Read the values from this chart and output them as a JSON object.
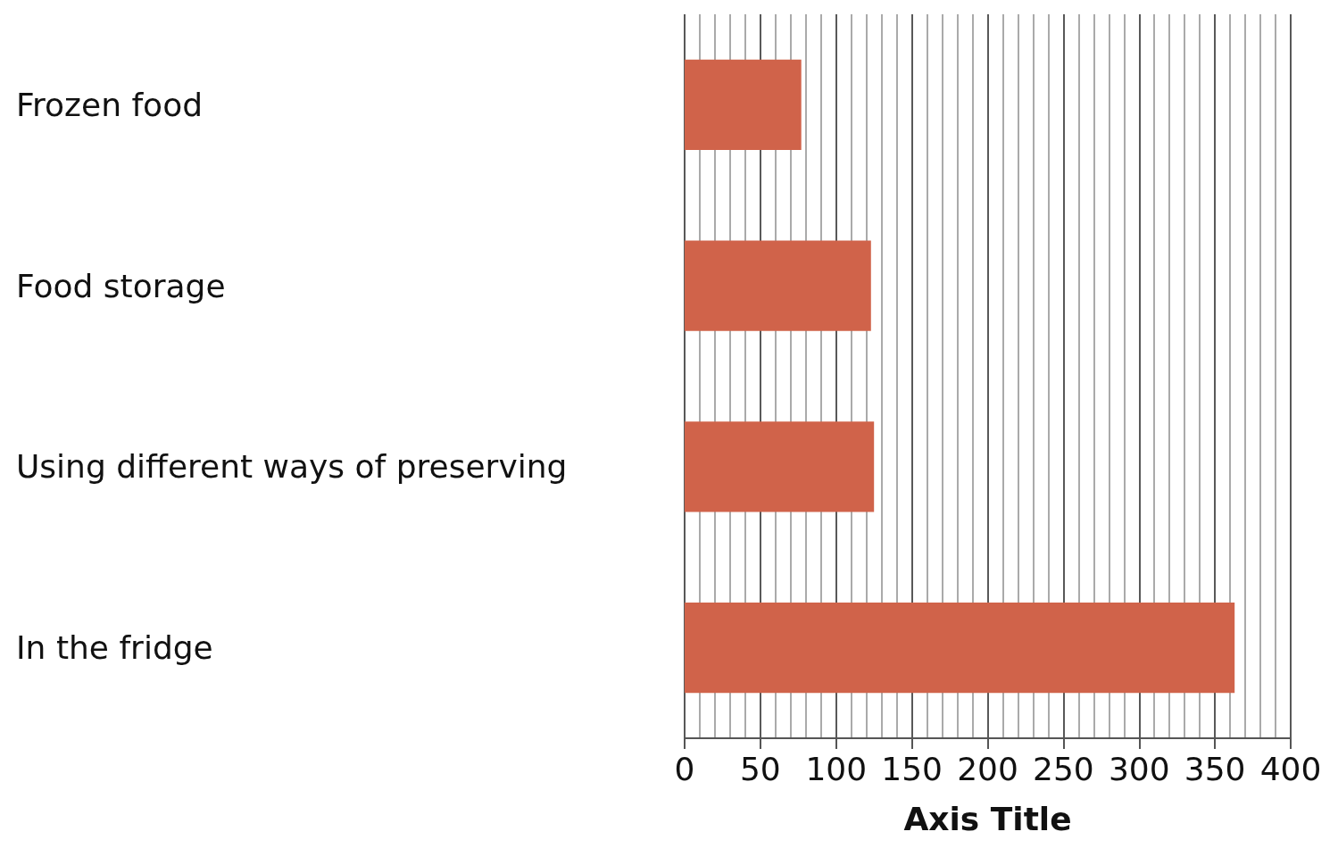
{
  "chart_data": {
    "type": "bar",
    "orientation": "horizontal",
    "xlabel": "Axis Title",
    "categories": [
      "Frozen food",
      "Food storage",
      "Using different ways of preserving",
      "In the fridge"
    ],
    "values": [
      77,
      123,
      125,
      363
    ],
    "color": "#d0634a",
    "xlim": [
      0,
      400
    ],
    "xticks": [
      0,
      50,
      100,
      150,
      200,
      250,
      300,
      350,
      400
    ],
    "grid": "x"
  }
}
